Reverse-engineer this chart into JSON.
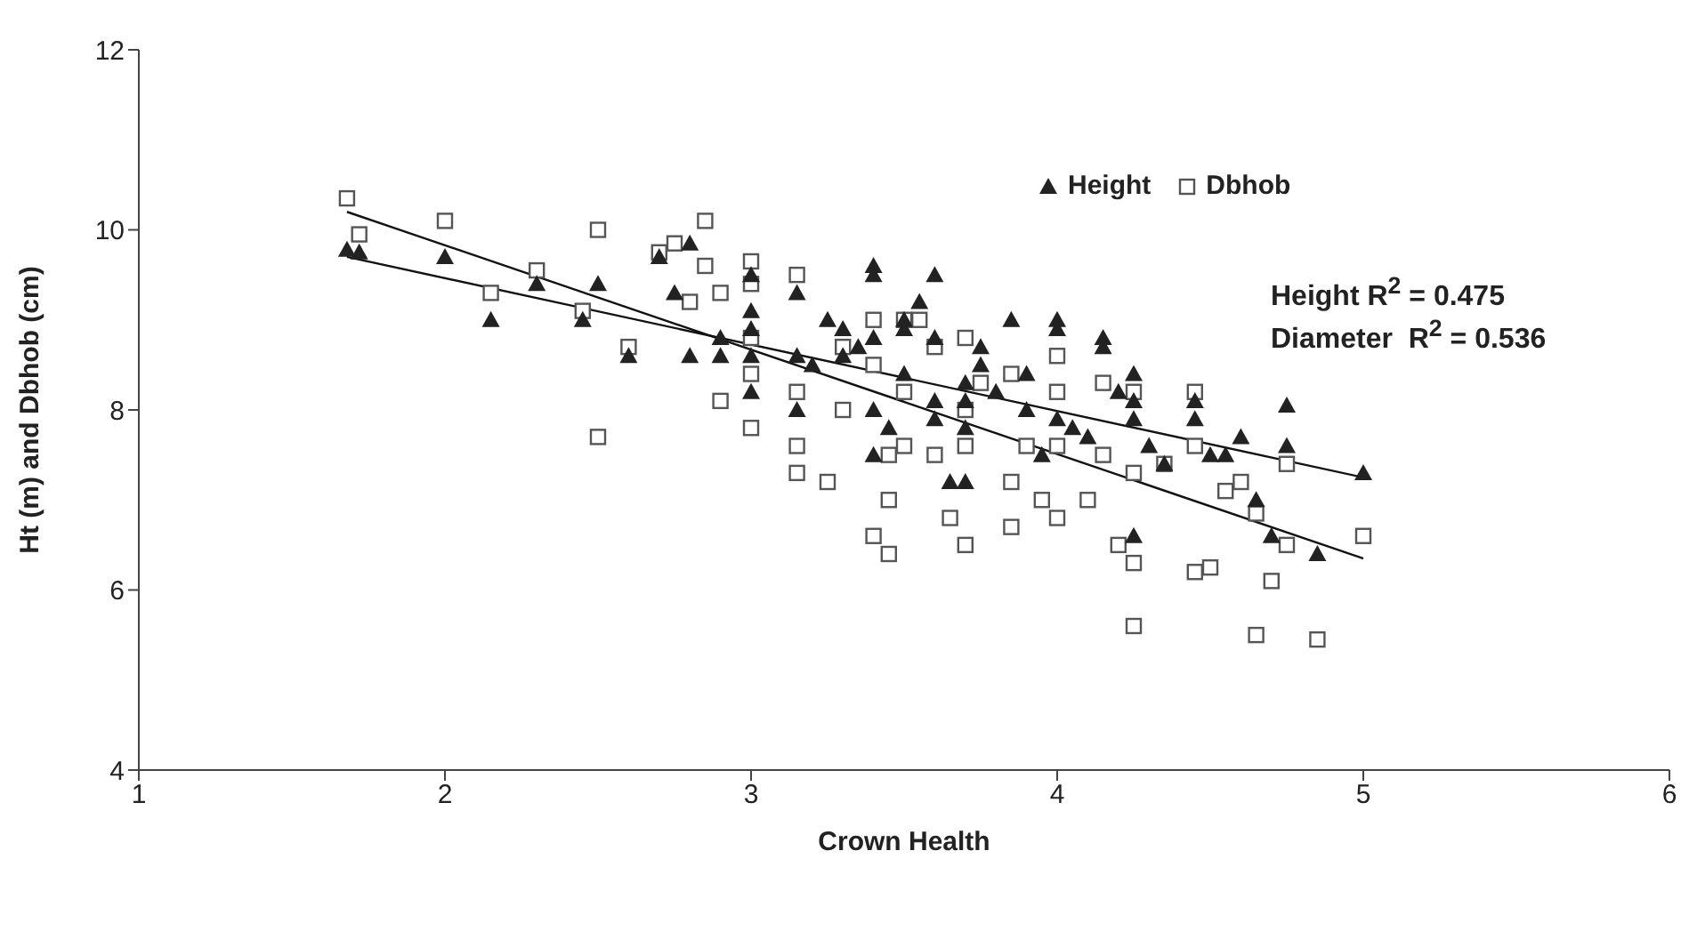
{
  "chart_data": {
    "type": "scatter",
    "xlabel": "Crown Health",
    "ylabel": "Ht (m) and Dbhob (cm)",
    "xlim": [
      1,
      6
    ],
    "xticks": [
      1,
      2,
      3,
      4,
      5,
      6
    ],
    "ylim": [
      4,
      12
    ],
    "yticks": [
      4,
      6,
      8,
      10,
      12
    ],
    "grid": false,
    "legend": "top right",
    "annotations": [
      "Height R$^{2}$ = 0.475",
      "Diameter  R$^{2}$ = 0.536"
    ],
    "series": [
      {
        "name": "Height",
        "color": "#222222",
        "marker": "triangle",
        "x": [
          1.68,
          1.72,
          2.0,
          2.15,
          2.3,
          2.45,
          2.5,
          2.6,
          2.7,
          2.75,
          2.8,
          2.8,
          2.9,
          2.9,
          3.0,
          3.0,
          3.0,
          3.0,
          3.0,
          3.15,
          3.15,
          3.15,
          3.2,
          3.25,
          3.3,
          3.3,
          3.35,
          3.4,
          3.4,
          3.4,
          3.4,
          3.4,
          3.45,
          3.5,
          3.5,
          3.5,
          3.55,
          3.6,
          3.6,
          3.6,
          3.6,
          3.65,
          3.7,
          3.7,
          3.7,
          3.7,
          3.75,
          3.75,
          3.8,
          3.85,
          3.9,
          3.9,
          3.95,
          4.0,
          4.0,
          4.0,
          4.05,
          4.1,
          4.15,
          4.15,
          4.2,
          4.25,
          4.25,
          4.25,
          4.25,
          4.3,
          4.35,
          4.45,
          4.45,
          4.5,
          4.55,
          4.6,
          4.65,
          4.7,
          4.75,
          4.75,
          4.85,
          5.0
        ],
        "values": [
          9.78,
          9.75,
          9.7,
          9.0,
          9.4,
          9.0,
          9.4,
          8.6,
          9.7,
          9.3,
          9.85,
          8.6,
          8.6,
          8.8,
          9.5,
          9.1,
          8.9,
          8.6,
          8.2,
          9.3,
          8.6,
          8.0,
          8.5,
          9.0,
          8.9,
          8.6,
          8.7,
          9.6,
          9.5,
          8.8,
          8.0,
          7.5,
          7.8,
          9.0,
          8.9,
          8.4,
          9.2,
          9.5,
          8.8,
          8.1,
          7.9,
          7.2,
          8.3,
          8.1,
          7.8,
          7.2,
          8.7,
          8.5,
          8.2,
          9.0,
          8.4,
          8.0,
          7.5,
          9.0,
          8.9,
          7.9,
          7.8,
          7.7,
          8.8,
          8.7,
          8.2,
          8.4,
          8.1,
          7.9,
          6.6,
          7.6,
          7.4,
          8.1,
          7.9,
          7.5,
          7.5,
          7.7,
          7.0,
          6.6,
          8.05,
          7.6,
          6.4,
          7.3
        ]
      },
      {
        "name": "Dbhob",
        "color": "#555555",
        "marker": "square",
        "x": [
          1.68,
          1.72,
          2.0,
          2.15,
          2.3,
          2.45,
          2.5,
          2.5,
          2.6,
          2.7,
          2.75,
          2.8,
          2.85,
          2.85,
          2.9,
          2.9,
          3.0,
          3.0,
          3.0,
          3.0,
          3.0,
          3.15,
          3.15,
          3.15,
          3.15,
          3.25,
          3.3,
          3.3,
          3.4,
          3.4,
          3.4,
          3.45,
          3.45,
          3.45,
          3.5,
          3.5,
          3.5,
          3.55,
          3.6,
          3.6,
          3.65,
          3.7,
          3.7,
          3.7,
          3.7,
          3.75,
          3.85,
          3.85,
          3.85,
          3.9,
          3.95,
          4.0,
          4.0,
          4.0,
          4.0,
          4.1,
          4.15,
          4.15,
          4.2,
          4.25,
          4.25,
          4.25,
          4.25,
          4.35,
          4.45,
          4.45,
          4.45,
          4.5,
          4.55,
          4.6,
          4.65,
          4.65,
          4.7,
          4.75,
          4.75,
          4.85,
          5.0
        ],
        "values": [
          10.35,
          9.95,
          10.1,
          9.3,
          9.55,
          9.1,
          10.0,
          7.7,
          8.7,
          9.75,
          9.85,
          9.2,
          10.1,
          9.6,
          9.3,
          8.1,
          9.65,
          9.4,
          8.8,
          8.4,
          7.8,
          9.5,
          8.2,
          7.6,
          7.3,
          7.2,
          8.7,
          8.0,
          9.0,
          8.5,
          6.6,
          7.5,
          7.0,
          6.4,
          9.0,
          8.2,
          7.6,
          9.0,
          8.7,
          7.5,
          6.8,
          8.8,
          8.0,
          7.6,
          6.5,
          8.3,
          8.4,
          7.2,
          6.7,
          7.6,
          7.0,
          8.6,
          8.2,
          7.6,
          6.8,
          7.0,
          8.3,
          7.5,
          6.5,
          8.2,
          7.3,
          6.3,
          5.6,
          7.4,
          8.2,
          7.6,
          6.2,
          6.25,
          7.1,
          7.2,
          6.85,
          5.5,
          6.1,
          7.4,
          6.5,
          5.45,
          6.6
        ]
      },
      {
        "type": "line",
        "color": "#111111",
        "marker": "none",
        "x": [
          1.68,
          5.0
        ],
        "values": [
          9.7,
          7.25
        ]
      },
      {
        "type": "line",
        "color": "#111111",
        "marker": "none",
        "x": [
          1.68,
          5.0
        ],
        "values": [
          10.2,
          6.35
        ]
      }
    ]
  }
}
